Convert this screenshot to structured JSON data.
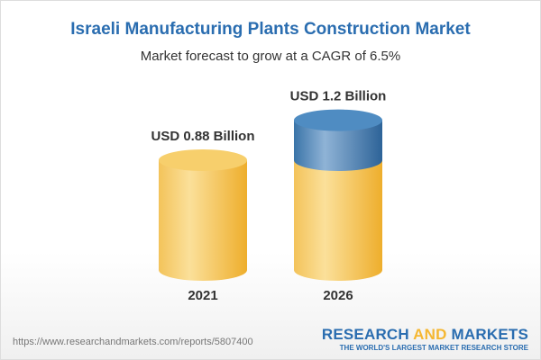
{
  "chart_data": {
    "type": "bar",
    "title": "Israeli Manufacturing Plants Construction Market",
    "subtitle": "Market forecast to grow at a CAGR of 6.5%",
    "categories": [
      "2021",
      "2026"
    ],
    "values": [
      0.88,
      1.2
    ],
    "data_labels": [
      "USD 0.88 Billion",
      "USD 1.2 Billion"
    ],
    "style": "3d-cylinder",
    "colors": {
      "base": "#f5c04e",
      "growth": "#3f7fb5",
      "title": "#2a6db0"
    }
  },
  "footer": {
    "url": "https://www.researchandmarkets.com/reports/5807400",
    "logo_a": "RESEARCH ",
    "logo_and": "AND",
    "logo_b": " MARKETS",
    "tagline": "THE WORLD'S LARGEST MARKET RESEARCH STORE"
  }
}
